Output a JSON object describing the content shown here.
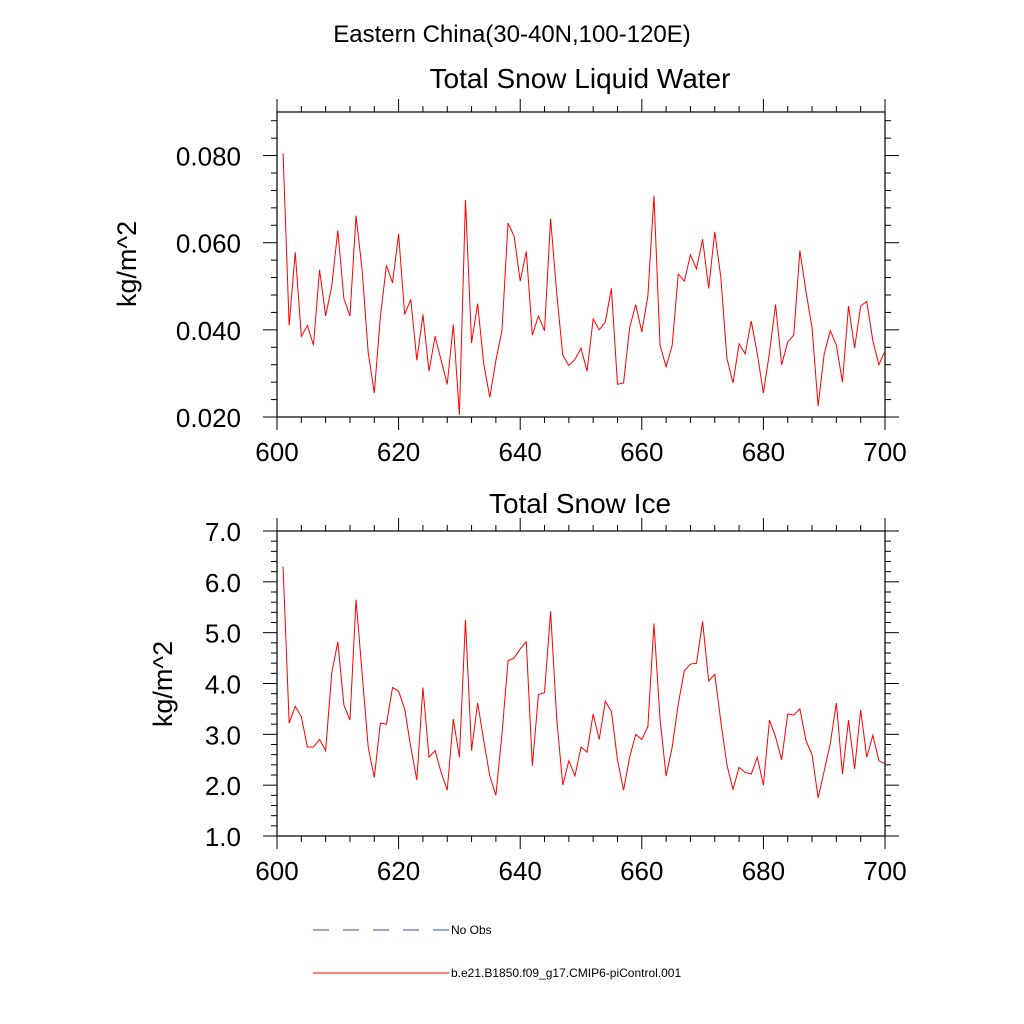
{
  "suptitle": "Eastern China(30-40N,100-120E)",
  "colors": {
    "model": "#ff0000",
    "obs": "#3355aa"
  },
  "legend": {
    "placement": "bottom",
    "obs_label": "No Obs",
    "model_label": "b.e21.B1850.f09_g17.CMIP6-piControl.001"
  },
  "chart_data": [
    {
      "type": "line",
      "title": "Total Snow Liquid Water",
      "ylabel": "kg/m^2",
      "xlabel": "",
      "xlim": [
        600,
        700
      ],
      "ylim": [
        0.02,
        0.09
      ],
      "x_ticks": [
        600,
        620,
        640,
        660,
        680,
        700
      ],
      "x_tick_labels": [
        "600",
        "620",
        "640",
        "660",
        "680",
        "700"
      ],
      "y_ticks": [
        0.02,
        0.04,
        0.06,
        0.08
      ],
      "y_tick_labels": [
        "0.020",
        "0.040",
        "0.060",
        "0.080"
      ],
      "grid": false,
      "series": [
        {
          "x_start": 601,
          "x_step": 1,
          "values": [
            0.0805,
            0.041,
            0.0578,
            0.0385,
            0.041,
            0.0365,
            0.0538,
            0.0432,
            0.05,
            0.0628,
            0.0472,
            0.0432,
            0.0662,
            0.0538,
            0.0348,
            0.0255,
            0.043,
            0.0548,
            0.0508,
            0.062,
            0.0435,
            0.047,
            0.033,
            0.0435,
            0.0305,
            0.0385,
            0.033,
            0.0275,
            0.0412,
            0.0205,
            0.0698,
            0.037,
            0.046,
            0.0322,
            0.0245,
            0.033,
            0.0398,
            0.0645,
            0.0615,
            0.0512,
            0.058,
            0.0388,
            0.0432,
            0.0398,
            0.0655,
            0.0485,
            0.0342,
            0.0318,
            0.0332,
            0.0358,
            0.0305,
            0.0425,
            0.04,
            0.0418,
            0.0495,
            0.0275,
            0.0278,
            0.0405,
            0.0458,
            0.0395,
            0.0478,
            0.0708,
            0.0365,
            0.0315,
            0.0365,
            0.0528,
            0.0512,
            0.0572,
            0.054,
            0.0608,
            0.0495,
            0.0625,
            0.052,
            0.0335,
            0.0278,
            0.0368,
            0.0345,
            0.042,
            0.0345,
            0.0255,
            0.0348,
            0.0458,
            0.032,
            0.0372,
            0.0388,
            0.0582,
            0.0488,
            0.0405,
            0.0225,
            0.0345,
            0.0398,
            0.0365,
            0.028,
            0.0455,
            0.0358,
            0.0455,
            0.0465,
            0.0375,
            0.032,
            0.0352
          ]
        }
      ]
    },
    {
      "type": "line",
      "title": "Total Snow Ice",
      "ylabel": "kg/m^2",
      "xlabel": "",
      "xlim": [
        600,
        700
      ],
      "ylim": [
        1.0,
        7.0
      ],
      "x_ticks": [
        600,
        620,
        640,
        660,
        680,
        700
      ],
      "x_tick_labels": [
        "600",
        "620",
        "640",
        "660",
        "680",
        "700"
      ],
      "y_ticks": [
        1.0,
        2.0,
        3.0,
        4.0,
        5.0,
        6.0,
        7.0
      ],
      "y_tick_labels": [
        "1.0",
        "2.0",
        "3.0",
        "4.0",
        "5.0",
        "6.0",
        "7.0"
      ],
      "grid": false,
      "series": [
        {
          "x_start": 601,
          "x_step": 1,
          "values": [
            6.3,
            3.22,
            3.55,
            3.35,
            2.75,
            2.75,
            2.9,
            2.68,
            4.2,
            4.82,
            3.58,
            3.28,
            5.65,
            4.2,
            2.75,
            2.15,
            3.22,
            3.2,
            3.92,
            3.85,
            3.5,
            2.75,
            2.1,
            3.92,
            2.55,
            2.68,
            2.25,
            1.9,
            3.3,
            2.55,
            5.25,
            2.68,
            3.62,
            2.88,
            2.18,
            1.8,
            3.0,
            4.45,
            4.5,
            4.68,
            4.82,
            2.38,
            3.78,
            3.82,
            5.42,
            3.32,
            2.0,
            2.48,
            2.18,
            2.75,
            2.65,
            3.4,
            2.9,
            3.65,
            3.45,
            2.5,
            1.9,
            2.55,
            3.0,
            2.9,
            3.15,
            5.18,
            3.3,
            2.18,
            2.75,
            3.6,
            4.25,
            4.38,
            4.4,
            5.22,
            4.05,
            4.18,
            3.25,
            2.4,
            1.92,
            2.35,
            2.25,
            2.22,
            2.55,
            2.0,
            3.28,
            2.95,
            2.5,
            3.4,
            3.38,
            3.5,
            2.88,
            2.6,
            1.75,
            2.28,
            2.82,
            3.62,
            2.22,
            3.28,
            2.32,
            3.48,
            2.55,
            2.98,
            2.48,
            2.42
          ]
        }
      ]
    }
  ]
}
